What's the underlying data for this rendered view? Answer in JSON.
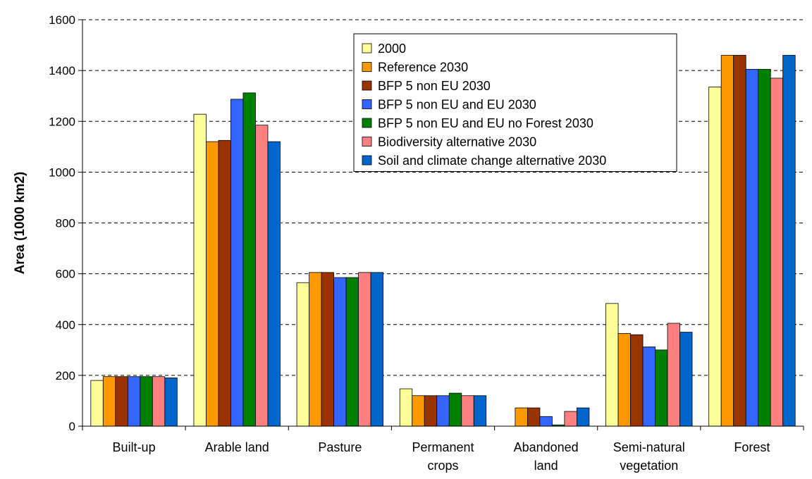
{
  "chart_data": {
    "type": "bar",
    "ylabel": "Area (1000 km2)",
    "xlabel": "",
    "ylim": [
      0,
      1600
    ],
    "yticks": [
      0,
      200,
      400,
      600,
      800,
      1000,
      1200,
      1400,
      1600
    ],
    "grid": "horizontal dashed",
    "legend_position": "top-center",
    "categories": [
      [
        "Built-up"
      ],
      [
        "Arable land"
      ],
      [
        "Pasture"
      ],
      [
        "Permanent",
        "crops"
      ],
      [
        "Abandoned",
        "land"
      ],
      [
        "Semi-natural",
        "vegetation"
      ],
      [
        "Forest"
      ]
    ],
    "series": [
      {
        "name": "2000",
        "color": "#ffff99",
        "values": [
          180,
          1228,
          565,
          147,
          0,
          483,
          1335
        ]
      },
      {
        "name": "Reference 2030",
        "color": "#ff9900",
        "values": [
          195,
          1120,
          605,
          120,
          72,
          365,
          1460
        ]
      },
      {
        "name": "BFP 5 non EU 2030",
        "color": "#993300",
        "values": [
          195,
          1125,
          605,
          120,
          72,
          360,
          1460
        ]
      },
      {
        "name": "BFP 5 non EU and EU 2030",
        "color": "#3366ff",
        "values": [
          195,
          1287,
          585,
          120,
          38,
          312,
          1405
        ]
      },
      {
        "name": "BFP 5 non EU and EU no Forest 2030",
        "color": "#008000",
        "values": [
          195,
          1312,
          585,
          130,
          5,
          300,
          1405
        ]
      },
      {
        "name": "Biodiversity alternative 2030",
        "color": "#ff8080",
        "values": [
          195,
          1185,
          605,
          120,
          58,
          405,
          1370
        ]
      },
      {
        "name": "Soil and climate change alternative 2030",
        "color": "#0066cc",
        "values": [
          190,
          1120,
          605,
          120,
          72,
          370,
          1460
        ]
      }
    ]
  }
}
